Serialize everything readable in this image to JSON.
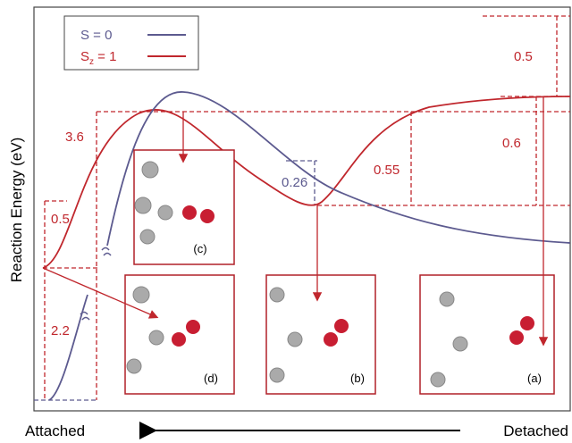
{
  "axis_label": "Reaction Energy  (eV)",
  "legend": [
    {
      "label": "S = 0"
    },
    {
      "label_main": "S",
      "label_sub": "z",
      "label_rest": " = 1"
    }
  ],
  "energies": {
    "e_0_5_left": "0.5",
    "e_2_2": "2.2",
    "e_3_6": "3.6",
    "e_0_26": "0.26",
    "e_0_55": "0.55",
    "e_0_6": "0.6",
    "e_0_5_right": "0.5"
  },
  "panels": [
    "(c)",
    "(d)",
    "(b)",
    "(a)"
  ],
  "x_axis": {
    "left": "Attached",
    "right": "Detached"
  }
}
